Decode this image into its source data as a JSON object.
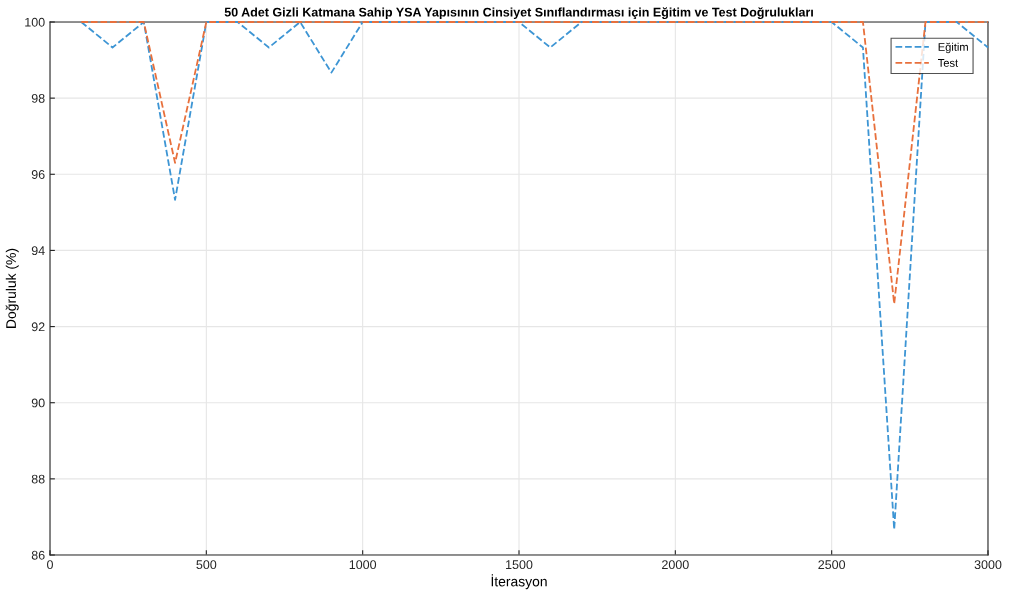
{
  "chart_data": {
    "type": "line",
    "title": "50 Adet Gizli Katmana Sahip YSA Yapısının Cinsiyet Sınıflandırması için Eğitim ve Test Doğrulukları",
    "xlabel": "İterasyon",
    "ylabel": "Doğruluk (%)",
    "x": [
      100,
      200,
      300,
      400,
      500,
      600,
      700,
      800,
      900,
      1000,
      1100,
      1200,
      1300,
      1400,
      1500,
      1600,
      1700,
      1800,
      1900,
      2000,
      2100,
      2200,
      2300,
      2400,
      2500,
      2600,
      2700,
      2800,
      2900,
      3000
    ],
    "series": [
      {
        "name": "Eğitim",
        "color": "#3d95d4",
        "values": [
          100,
          99.33,
          100,
          95.33,
          100,
          100,
          99.33,
          100,
          98.67,
          100,
          100,
          100,
          100,
          100,
          100,
          99.33,
          100,
          100,
          100,
          100,
          100,
          100,
          100,
          100,
          100,
          99.33,
          86.67,
          100,
          100,
          99.33
        ]
      },
      {
        "name": "Test",
        "color": "#e8703c",
        "values": [
          100,
          100,
          100,
          96.3,
          100,
          100,
          100,
          100,
          100,
          100,
          100,
          100,
          100,
          100,
          100,
          100,
          100,
          100,
          100,
          100,
          100,
          100,
          100,
          100,
          100,
          100,
          92.6,
          100,
          100,
          100
        ]
      }
    ],
    "xlim": [
      0,
      3000
    ],
    "xticks": [
      0,
      500,
      1000,
      1500,
      2000,
      2500,
      3000
    ],
    "ylim": [
      86,
      100
    ],
    "yticks": [
      86,
      88,
      90,
      92,
      94,
      96,
      98,
      100
    ],
    "grid": true,
    "legend": "top right",
    "line_style": "dashed",
    "marker": "none"
  }
}
